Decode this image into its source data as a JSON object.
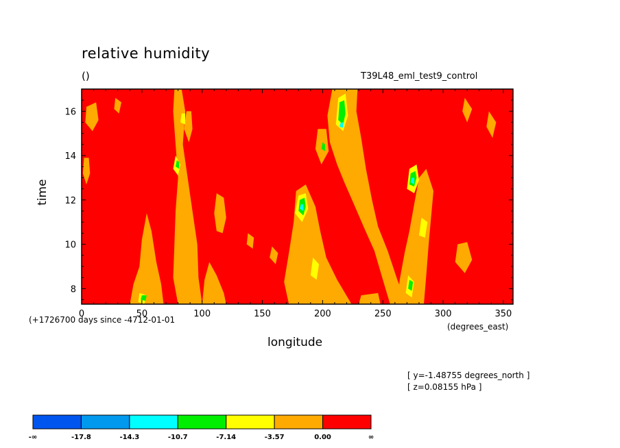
{
  "chart_data": {
    "type": "heatmap",
    "title": "relative humidity",
    "units_label": "()",
    "run_label": "T39L48_eml_test9_control",
    "xlabel": "longitude",
    "x_units": "(degrees_east)",
    "ylabel": "time",
    "time_offset_label": "(+1726700 days since -4712-01-01",
    "info_lines": [
      "[ y=-1.48755 degrees_north ]",
      "[ z=0.08155 hPa ]"
    ],
    "xlim": [
      0,
      358
    ],
    "ylim": [
      7.3,
      17.0
    ],
    "x_ticks": [
      0,
      50,
      100,
      150,
      200,
      250,
      300,
      350
    ],
    "x_tick_labels": [
      "0",
      "50",
      "100",
      "150",
      "200",
      "250",
      "300",
      "350"
    ],
    "y_ticks": [
      8,
      10,
      12,
      14,
      16
    ],
    "y_tick_labels": [
      "8",
      "10",
      "12",
      "14",
      "16"
    ],
    "grid": false,
    "background_color": "#ff0000",
    "colorbar": {
      "colors": [
        "#0055ee",
        "#0099ee",
        "#00ffff",
        "#00ee00",
        "#ffff00",
        "#ffaa00",
        "#ff0000"
      ],
      "labels": [
        "-∞",
        "-17.8",
        "-14.3",
        "-10.7",
        "-7.14",
        "-3.57",
        "0.00",
        "∞"
      ]
    },
    "patches": [
      {
        "level": 5,
        "pts": [
          [
            80,
            7.3
          ],
          [
            76,
            8.5
          ],
          [
            77,
            10
          ],
          [
            78,
            11.5
          ],
          [
            80,
            13
          ],
          [
            78,
            14.5
          ],
          [
            76,
            16
          ],
          [
            77,
            17
          ],
          [
            83,
            17
          ],
          [
            86,
            16
          ],
          [
            84,
            14.5
          ],
          [
            88,
            13
          ],
          [
            92,
            11.5
          ],
          [
            96,
            10
          ],
          [
            97,
            8.5
          ],
          [
            100,
            7.3
          ]
        ]
      },
      {
        "level": 5,
        "pts": [
          [
            87,
            16
          ],
          [
            85,
            15.2
          ],
          [
            89,
            14.6
          ],
          [
            92,
            15.2
          ],
          [
            91,
            16
          ]
        ]
      },
      {
        "level": 5,
        "pts": [
          [
            100,
            7.3
          ],
          [
            102,
            8.4
          ],
          [
            106,
            9.2
          ],
          [
            112,
            8.6
          ],
          [
            118,
            7.8
          ],
          [
            120,
            7.3
          ]
        ]
      },
      {
        "level": 5,
        "pts": [
          [
            112,
            10.6
          ],
          [
            110,
            11.4
          ],
          [
            112,
            12.3
          ],
          [
            118,
            12.1
          ],
          [
            120,
            11.2
          ],
          [
            117,
            10.5
          ]
        ]
      },
      {
        "level": 5,
        "pts": [
          [
            40,
            7.3
          ],
          [
            43,
            8.2
          ],
          [
            48,
            9.0
          ],
          [
            50,
            10.2
          ],
          [
            54,
            11.4
          ],
          [
            58,
            10.6
          ],
          [
            62,
            9.2
          ],
          [
            66,
            8.2
          ],
          [
            68,
            7.3
          ]
        ]
      },
      {
        "level": 5,
        "pts": [
          [
            2,
            13.9
          ],
          [
            1,
            13.2
          ],
          [
            4,
            12.7
          ],
          [
            7,
            13.2
          ],
          [
            6,
            13.9
          ]
        ]
      },
      {
        "level": 5,
        "pts": [
          [
            4,
            16.2
          ],
          [
            3,
            15.5
          ],
          [
            9,
            15.1
          ],
          [
            14,
            15.6
          ],
          [
            12,
            16.4
          ]
        ]
      },
      {
        "level": 5,
        "pts": [
          [
            28,
            16.6
          ],
          [
            27,
            16.1
          ],
          [
            31,
            15.9
          ],
          [
            33,
            16.4
          ]
        ]
      },
      {
        "level": 5,
        "pts": [
          [
            172,
            7.3
          ],
          [
            168,
            8.3
          ],
          [
            172,
            9.6
          ],
          [
            176,
            11.0
          ],
          [
            178,
            12.4
          ],
          [
            186,
            12.7
          ],
          [
            194,
            11.7
          ],
          [
            198,
            10.6
          ],
          [
            203,
            9.4
          ],
          [
            212,
            8.4
          ],
          [
            224,
            7.3
          ]
        ]
      },
      {
        "level": 5,
        "pts": [
          [
            208,
            17.0
          ],
          [
            204,
            15.8
          ],
          [
            206,
            14.6
          ],
          [
            212,
            13.6
          ],
          [
            218,
            12.8
          ],
          [
            226,
            11.8
          ],
          [
            234,
            10.8
          ],
          [
            243,
            9.7
          ],
          [
            250,
            8.4
          ],
          [
            256,
            7.3
          ],
          [
            270,
            7.3
          ],
          [
            262,
            8.4
          ],
          [
            254,
            9.7
          ],
          [
            246,
            10.8
          ],
          [
            241,
            12.0
          ],
          [
            236,
            13.4
          ],
          [
            232,
            14.8
          ],
          [
            228,
            16.0
          ],
          [
            229,
            17.0
          ]
        ]
      },
      {
        "level": 5,
        "pts": [
          [
            196,
            15.2
          ],
          [
            194,
            14.3
          ],
          [
            199,
            13.6
          ],
          [
            205,
            14.2
          ],
          [
            203,
            15.2
          ]
        ]
      },
      {
        "level": 5,
        "pts": [
          [
            262,
            7.3
          ],
          [
            264,
            8.4
          ],
          [
            268,
            9.6
          ],
          [
            272,
            10.6
          ],
          [
            276,
            11.8
          ],
          [
            280,
            13.0
          ],
          [
            286,
            13.4
          ],
          [
            292,
            12.4
          ],
          [
            290,
            11.2
          ],
          [
            288,
            10.0
          ],
          [
            286,
            8.6
          ],
          [
            284,
            7.3
          ]
        ]
      },
      {
        "level": 5,
        "pts": [
          [
            232,
            7.7
          ],
          [
            230,
            7.3
          ],
          [
            248,
            7.3
          ],
          [
            246,
            7.8
          ]
        ]
      },
      {
        "level": 5,
        "pts": [
          [
            312,
            10.0
          ],
          [
            310,
            9.2
          ],
          [
            318,
            8.7
          ],
          [
            324,
            9.3
          ],
          [
            320,
            10.1
          ]
        ]
      },
      {
        "level": 5,
        "pts": [
          [
            318,
            16.6
          ],
          [
            316,
            16.0
          ],
          [
            320,
            15.5
          ],
          [
            324,
            16.1
          ]
        ]
      },
      {
        "level": 5,
        "pts": [
          [
            338,
            16.0
          ],
          [
            336,
            15.3
          ],
          [
            341,
            14.8
          ],
          [
            344,
            15.5
          ]
        ]
      },
      {
        "level": 5,
        "pts": [
          [
            158,
            9.9
          ],
          [
            156,
            9.4
          ],
          [
            161,
            9.1
          ],
          [
            163,
            9.6
          ]
        ]
      },
      {
        "level": 5,
        "pts": [
          [
            138,
            10.5
          ],
          [
            137,
            10.0
          ],
          [
            142,
            9.8
          ],
          [
            143,
            10.3
          ]
        ]
      },
      {
        "level": 4,
        "pts": [
          [
            48,
            7.8
          ],
          [
            47,
            7.4
          ],
          [
            52,
            7.3
          ],
          [
            54,
            7.7
          ]
        ]
      },
      {
        "level": 4,
        "pts": [
          [
            78,
            14.0
          ],
          [
            76,
            13.4
          ],
          [
            80,
            13.1
          ],
          [
            82,
            13.6
          ]
        ]
      },
      {
        "level": 4,
        "pts": [
          [
            83,
            15.9
          ],
          [
            82,
            15.5
          ],
          [
            86,
            15.4
          ],
          [
            86,
            15.9
          ]
        ]
      },
      {
        "level": 4,
        "pts": [
          [
            180,
            12.2
          ],
          [
            177,
            11.4
          ],
          [
            183,
            11.0
          ],
          [
            188,
            11.6
          ],
          [
            186,
            12.3
          ]
        ]
      },
      {
        "level": 4,
        "pts": [
          [
            213,
            16.6
          ],
          [
            211,
            15.4
          ],
          [
            217,
            15.1
          ],
          [
            221,
            15.8
          ],
          [
            219,
            16.8
          ]
        ]
      },
      {
        "level": 4,
        "pts": [
          [
            272,
            13.4
          ],
          [
            270,
            12.5
          ],
          [
            276,
            12.3
          ],
          [
            280,
            12.9
          ],
          [
            278,
            13.6
          ]
        ]
      },
      {
        "level": 4,
        "pts": [
          [
            271,
            8.6
          ],
          [
            269,
            7.8
          ],
          [
            274,
            7.6
          ],
          [
            276,
            8.3
          ]
        ]
      },
      {
        "level": 4,
        "pts": [
          [
            192,
            9.4
          ],
          [
            190,
            8.6
          ],
          [
            195,
            8.4
          ],
          [
            197,
            9.1
          ]
        ]
      },
      {
        "level": 4,
        "pts": [
          [
            282,
            11.2
          ],
          [
            280,
            10.4
          ],
          [
            285,
            10.3
          ],
          [
            287,
            11.0
          ]
        ]
      },
      {
        "level": 3,
        "pts": [
          [
            50,
            7.7
          ],
          [
            49,
            7.5
          ],
          [
            53,
            7.45
          ],
          [
            54,
            7.7
          ]
        ]
      },
      {
        "level": 3,
        "pts": [
          [
            79,
            13.8
          ],
          [
            78,
            13.5
          ],
          [
            81,
            13.4
          ],
          [
            81,
            13.7
          ]
        ]
      },
      {
        "level": 3,
        "pts": [
          [
            181,
            12.0
          ],
          [
            180,
            11.5
          ],
          [
            184,
            11.3
          ],
          [
            186,
            11.7
          ],
          [
            185,
            12.1
          ]
        ]
      },
      {
        "level": 3,
        "pts": [
          [
            214,
            16.4
          ],
          [
            213,
            15.6
          ],
          [
            217,
            15.4
          ],
          [
            219,
            15.9
          ],
          [
            218,
            16.5
          ]
        ]
      },
      {
        "level": 3,
        "pts": [
          [
            273,
            13.2
          ],
          [
            272,
            12.7
          ],
          [
            276,
            12.6
          ],
          [
            278,
            13.0
          ],
          [
            277,
            13.3
          ]
        ]
      },
      {
        "level": 3,
        "pts": [
          [
            272,
            8.4
          ],
          [
            271,
            8.0
          ],
          [
            274,
            7.9
          ],
          [
            275,
            8.3
          ]
        ]
      },
      {
        "level": 3,
        "pts": [
          [
            200,
            14.6
          ],
          [
            199,
            14.3
          ],
          [
            202,
            14.2
          ],
          [
            202,
            14.5
          ]
        ]
      },
      {
        "level": 2,
        "pts": [
          [
            182,
            11.8
          ],
          [
            181,
            11.6
          ],
          [
            184,
            11.5
          ],
          [
            184,
            11.8
          ]
        ]
      },
      {
        "level": 2,
        "pts": [
          [
            274,
            13.0
          ],
          [
            273,
            12.8
          ],
          [
            276,
            12.7
          ],
          [
            276,
            13.0
          ]
        ]
      },
      {
        "level": 2,
        "pts": [
          [
            215,
            15.5
          ],
          [
            214,
            15.3
          ],
          [
            217,
            15.25
          ],
          [
            217,
            15.5
          ]
        ]
      }
    ]
  }
}
